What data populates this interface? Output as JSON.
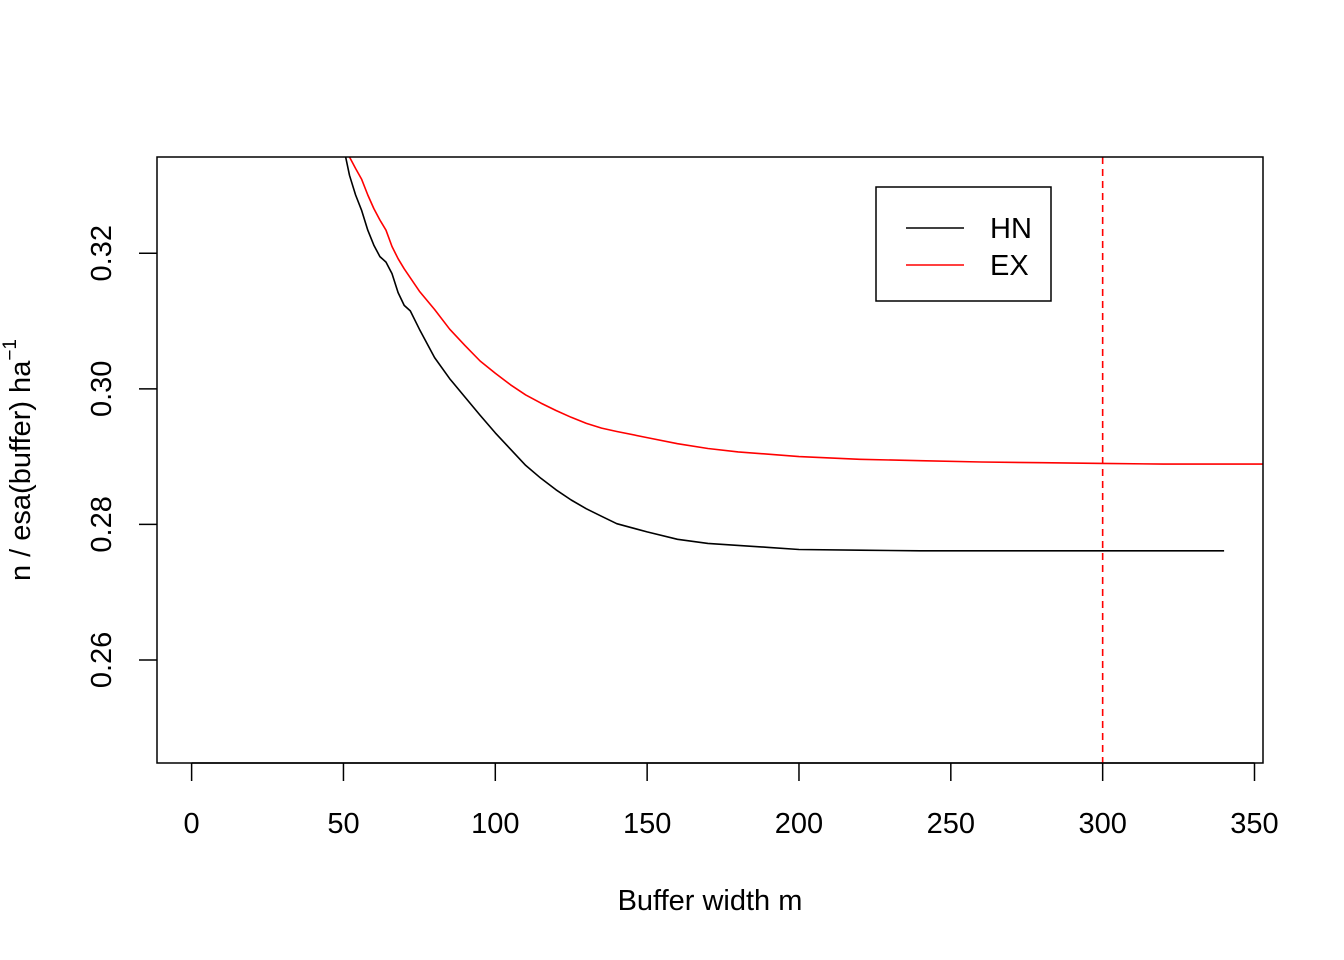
{
  "chart_data": {
    "type": "line",
    "xlabel": "Buffer width  m",
    "ylabel_main": "n / esa(buffer)   ha",
    "ylabel_sup": "−1",
    "xlim": [
      -11.4,
      352.8
    ],
    "ylim": [
      0.2448,
      0.3342
    ],
    "x_ticks": [
      0,
      50,
      100,
      150,
      200,
      250,
      300,
      350
    ],
    "x_tick_labels": [
      "0",
      "50",
      "100",
      "150",
      "200",
      "250",
      "300",
      "350"
    ],
    "y_ticks": [
      0.26,
      0.28,
      0.3,
      0.32
    ],
    "y_tick_labels": [
      "0.26",
      "0.28",
      "0.30",
      "0.32"
    ],
    "reference_line": {
      "x": 300,
      "color": "#ff0000",
      "style": "dashed"
    },
    "legend_position": "top-right",
    "series": [
      {
        "name": "HN",
        "color": "#000000",
        "x": [
          50,
          52,
          54,
          56,
          58,
          60,
          62,
          64,
          66,
          68,
          70,
          72,
          75,
          80,
          85,
          90,
          95,
          100,
          105,
          110,
          115,
          120,
          125,
          130,
          135,
          140,
          145,
          150,
          160,
          170,
          180,
          190,
          200,
          220,
          240,
          260,
          280,
          300,
          320,
          340
        ],
        "y": [
          0.3357,
          0.3315,
          0.3286,
          0.3263,
          0.3234,
          0.3212,
          0.3195,
          0.3187,
          0.317,
          0.3142,
          0.3123,
          0.3115,
          0.3088,
          0.3046,
          0.3015,
          0.2988,
          0.2961,
          0.2935,
          0.2911,
          0.2887,
          0.2868,
          0.2851,
          0.2836,
          0.2823,
          0.2812,
          0.2801,
          0.2795,
          0.2789,
          0.2778,
          0.2772,
          0.2769,
          0.2766,
          0.2763,
          0.2762,
          0.2761,
          0.2761,
          0.2761,
          0.2761,
          0.2761,
          0.2761
        ]
      },
      {
        "name": "EX",
        "color": "#ff0000",
        "x": [
          52,
          54,
          56,
          58,
          60,
          62,
          64,
          66,
          68,
          70,
          75,
          80,
          85,
          90,
          95,
          100,
          105,
          110,
          115,
          120,
          125,
          130,
          135,
          140,
          150,
          160,
          170,
          180,
          200,
          220,
          240,
          260,
          280,
          300,
          320,
          340,
          353
        ],
        "y": [
          0.3342,
          0.3325,
          0.3309,
          0.3286,
          0.3266,
          0.3249,
          0.3234,
          0.321,
          0.3192,
          0.3177,
          0.3144,
          0.3117,
          0.3088,
          0.3064,
          0.3041,
          0.3023,
          0.3006,
          0.2991,
          0.2979,
          0.2968,
          0.2958,
          0.2949,
          0.2942,
          0.2937,
          0.2928,
          0.2919,
          0.2912,
          0.2907,
          0.29,
          0.2896,
          0.2894,
          0.2892,
          0.2891,
          0.289,
          0.2889,
          0.2889,
          0.2889
        ]
      }
    ]
  }
}
